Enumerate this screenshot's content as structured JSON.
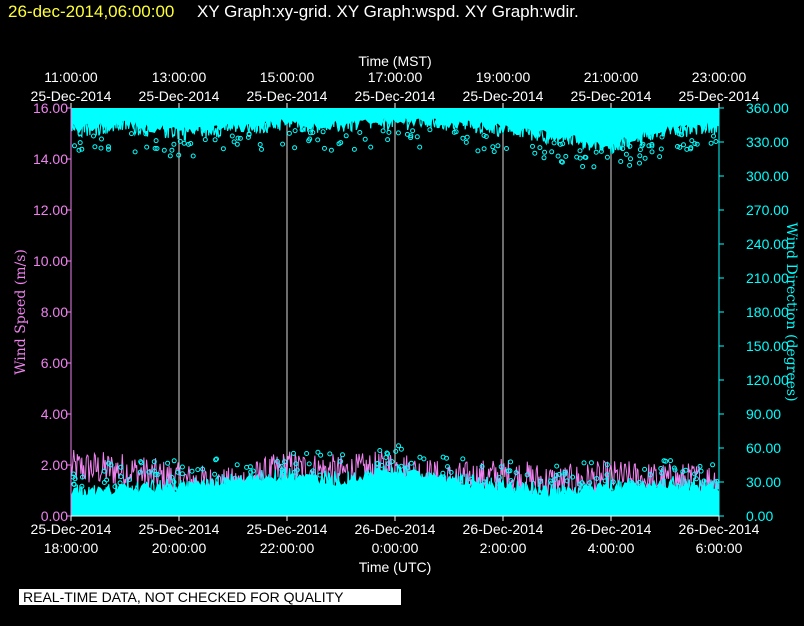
{
  "header": {
    "date": "26-dec-2014,06:00:00",
    "title": "XY Graph:xy-grid.  XY Graph:wspd.  XY Graph:wdir."
  },
  "disclaimer": "REAL-TIME DATA, NOT CHECKED FOR QUALITY",
  "colors": {
    "background": "#000000",
    "wind_speed": "#ee82ee",
    "wind_direction": "#00ffff",
    "axes": "#ffffff",
    "header_date": "#ffff33"
  },
  "chart_data": {
    "type": "line",
    "top_axis": {
      "label": "Time (MST)",
      "ticks": [
        {
          "time": "11:00:00",
          "date": "25-Dec-2014"
        },
        {
          "time": "13:00:00",
          "date": "25-Dec-2014"
        },
        {
          "time": "15:00:00",
          "date": "25-Dec-2014"
        },
        {
          "time": "17:00:00",
          "date": "25-Dec-2014"
        },
        {
          "time": "19:00:00",
          "date": "25-Dec-2014"
        },
        {
          "time": "21:00:00",
          "date": "25-Dec-2014"
        },
        {
          "time": "23:00:00",
          "date": "25-Dec-2014"
        }
      ]
    },
    "bottom_axis": {
      "label": "Time (UTC)",
      "ticks": [
        {
          "date": "25-Dec-2014",
          "time": "18:00:00"
        },
        {
          "date": "25-Dec-2014",
          "time": "20:00:00"
        },
        {
          "date": "25-Dec-2014",
          "time": "22:00:00"
        },
        {
          "date": "26-Dec-2014",
          "time": "0:00:00"
        },
        {
          "date": "26-Dec-2014",
          "time": "2:00:00"
        },
        {
          "date": "26-Dec-2014",
          "time": "4:00:00"
        },
        {
          "date": "26-Dec-2014",
          "time": "6:00:00"
        }
      ],
      "range": [
        "2014-12-25 18:00 UTC",
        "2014-12-26 06:00 UTC"
      ]
    },
    "left_axis": {
      "label": "Wind Speed (m/s)",
      "ylim": [
        0,
        16
      ],
      "ticks": [
        "0.00",
        "2.00",
        "4.00",
        "6.00",
        "8.00",
        "10.00",
        "12.00",
        "14.00",
        "16.00"
      ]
    },
    "right_axis": {
      "label": "Wind Direction (degrees)",
      "ylim": [
        0,
        360
      ],
      "ticks": [
        "0.00",
        "30.00",
        "60.00",
        "90.00",
        "120.00",
        "150.00",
        "180.00",
        "210.00",
        "240.00",
        "270.00",
        "300.00",
        "330.00",
        "360.00"
      ]
    },
    "grid": "vertical lines at each tick",
    "series": [
      {
        "name": "Wind Speed (m/s)",
        "axis": "left",
        "x": [
          "2014-12-25 18:00",
          "2014-12-25 19:00",
          "2014-12-25 20:00",
          "2014-12-25 21:00",
          "2014-12-25 22:00",
          "2014-12-25 23:00",
          "2014-12-26 00:00",
          "2014-12-26 01:00",
          "2014-12-26 02:00",
          "2014-12-26 03:00",
          "2014-12-26 04:00",
          "2014-12-26 05:00",
          "2014-12-26 06:00"
        ],
        "values": [
          1.9,
          1.8,
          1.4,
          1.2,
          1.9,
          1.7,
          1.9,
          1.4,
          1.6,
          1.3,
          1.5,
          1.4,
          1.4
        ]
      },
      {
        "name": "Wind Direction (degrees)",
        "axis": "right",
        "x": [
          "2014-12-25 18:00",
          "2014-12-25 19:00",
          "2014-12-25 20:00",
          "2014-12-25 21:00",
          "2014-12-25 22:00",
          "2014-12-25 23:00",
          "2014-12-26 00:00",
          "2014-12-26 01:00",
          "2014-12-26 02:00",
          "2014-12-26 03:00",
          "2014-12-26 04:00",
          "2014-12-26 05:00",
          "2014-12-26 06:00"
        ],
        "values_low_band": [
          15,
          18,
          20,
          25,
          30,
          25,
          35,
          25,
          20,
          15,
          20,
          22,
          18
        ],
        "values_high_band": [
          345,
          348,
          342,
          346,
          350,
          348,
          352,
          350,
          345,
          338,
          330,
          344,
          348
        ]
      }
    ]
  }
}
